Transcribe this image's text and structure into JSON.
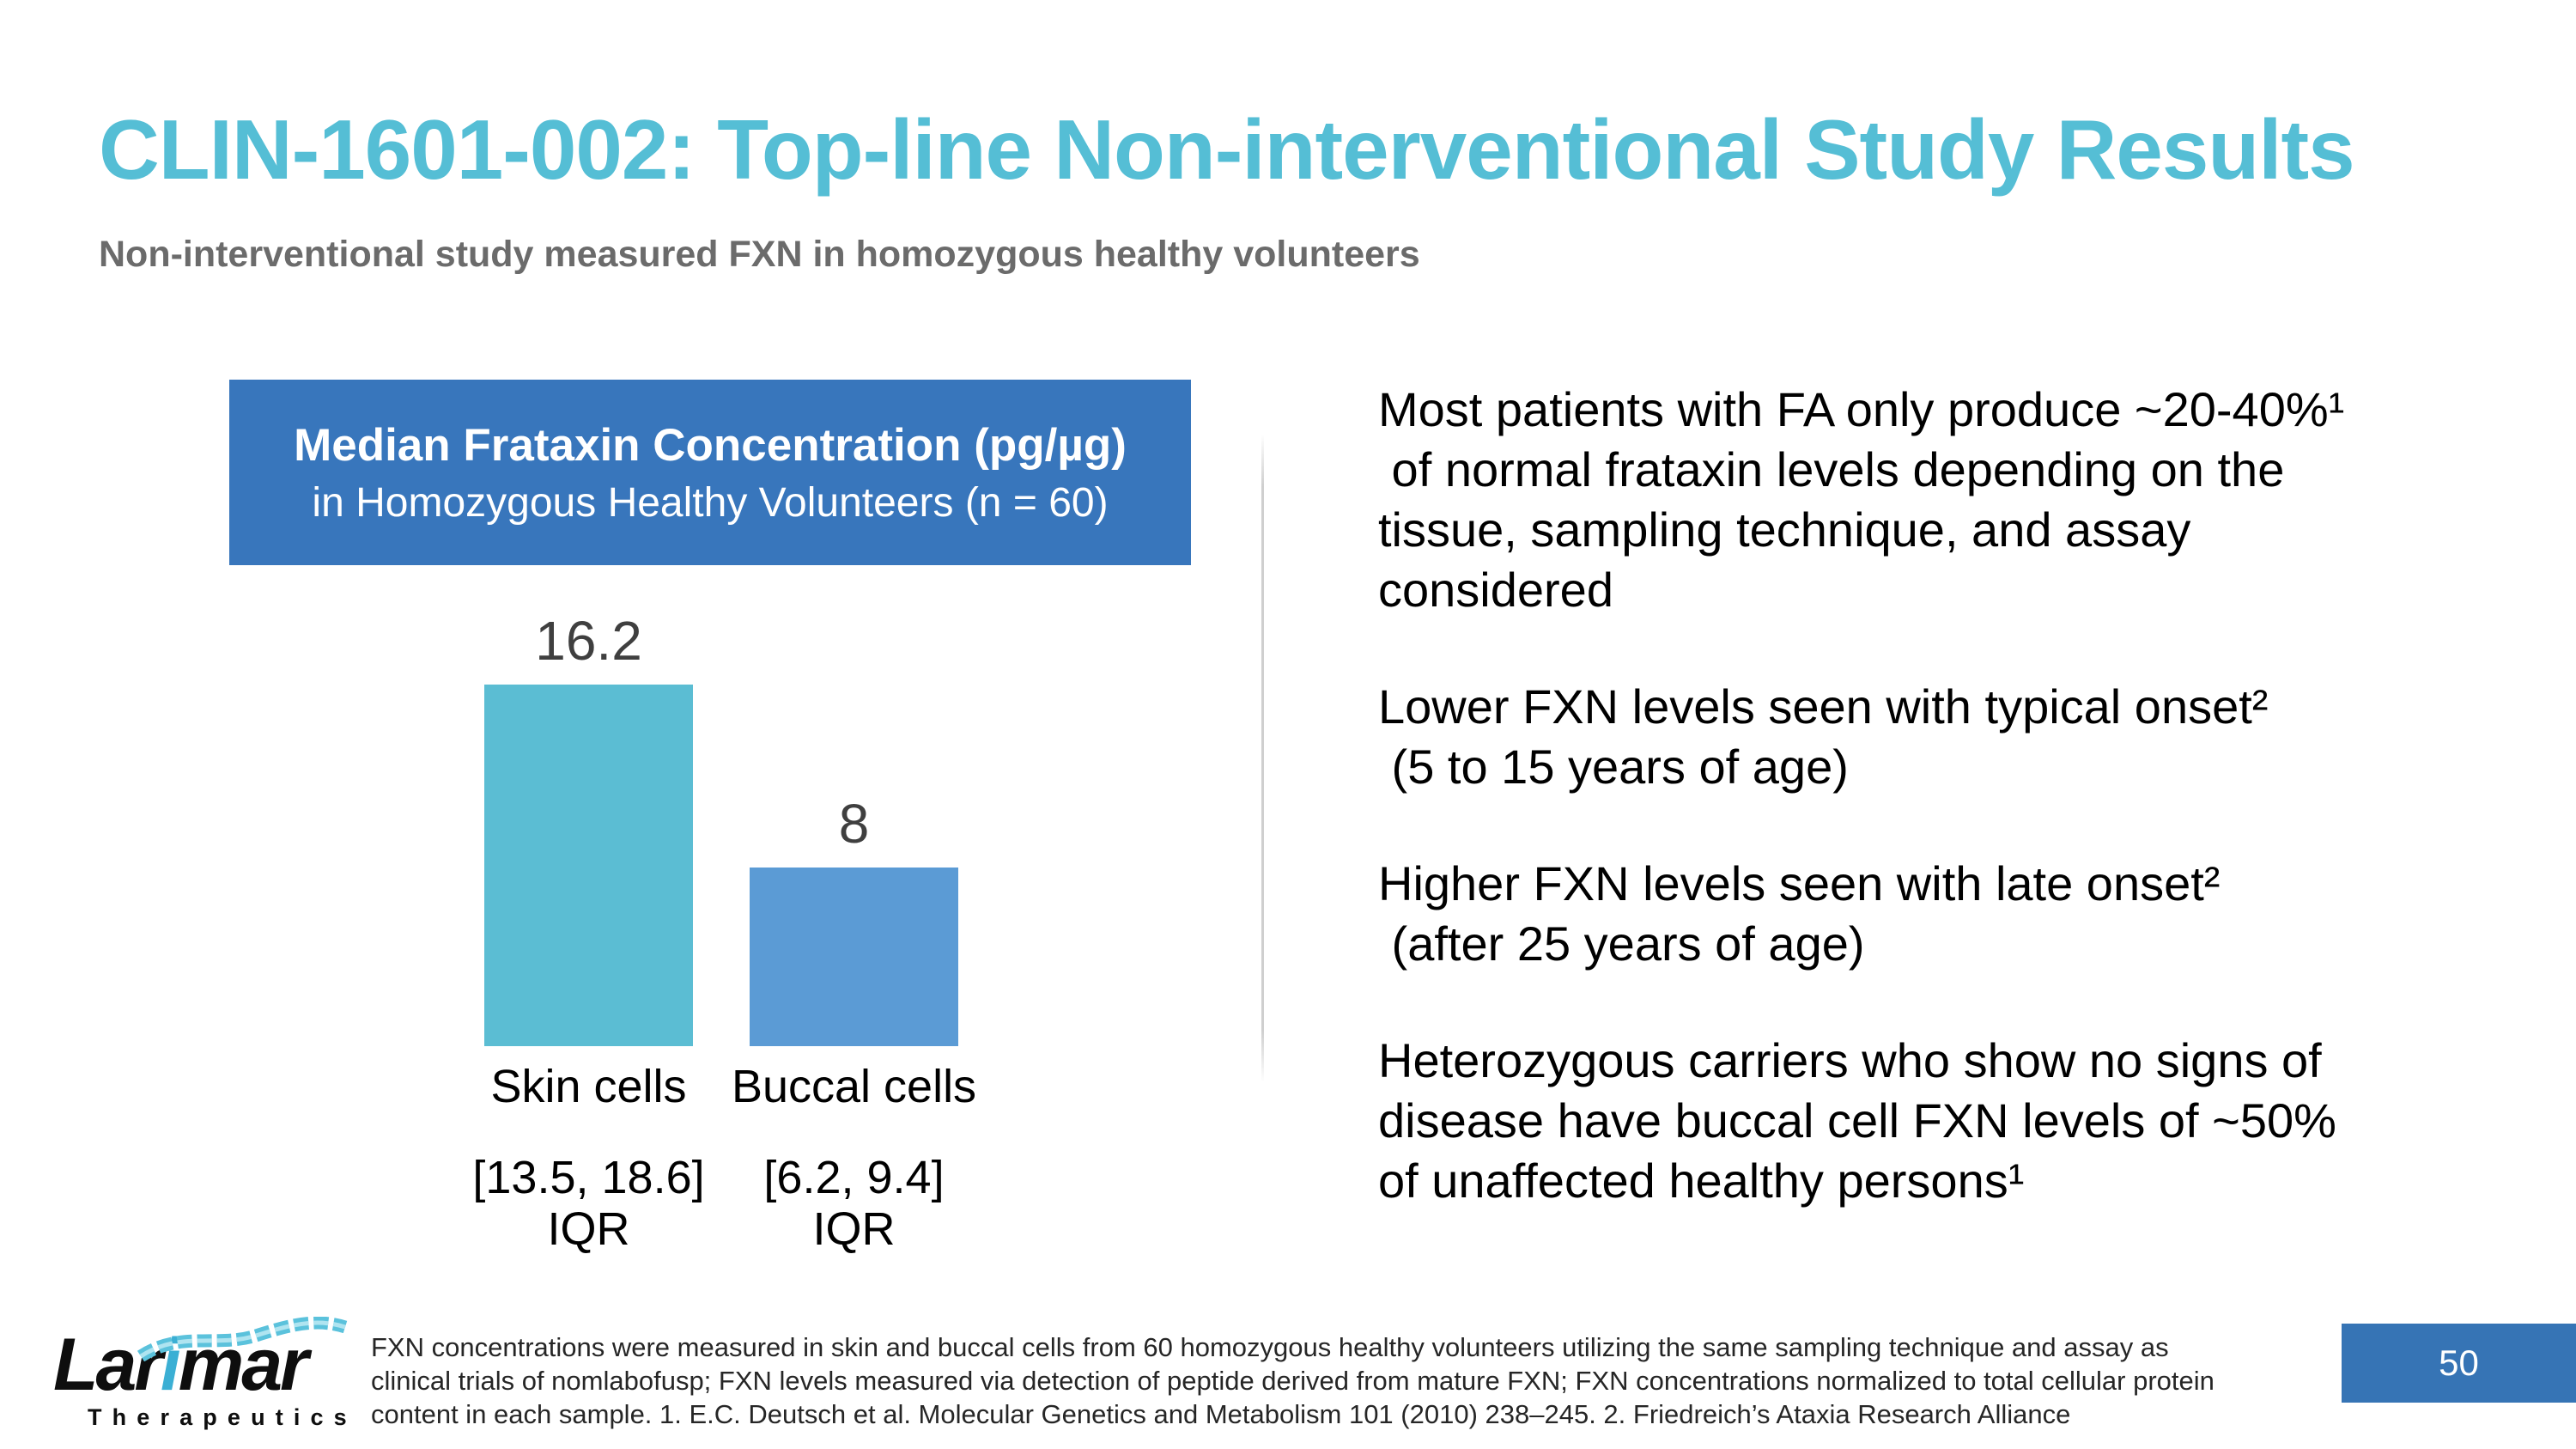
{
  "slide": {
    "title": "CLIN-1601-002: Top-line Non-interventional Study Results",
    "subtitle": "Non-interventional study measured FXN in homozygous healthy volunteers",
    "page_number": "50"
  },
  "chart_data": {
    "type": "bar",
    "title": "Median Frataxin Concentration (pg/µg)",
    "subtitle": "in Homozygous Healthy Volunteers (n = 60)",
    "categories": [
      "Skin cells",
      "Buccal cells"
    ],
    "values": [
      16.2,
      8
    ],
    "value_labels": [
      "16.2",
      "8"
    ],
    "iqr_ranges": [
      "[13.5, 18.6]",
      "[6.2, 9.4]"
    ],
    "iqr_label": "IQR",
    "bar_colors": [
      "#5BBDD3",
      "#5B9BD5"
    ],
    "value_label_color": "#3F3F3F",
    "ylim": [
      0,
      17
    ],
    "grid": false,
    "legend": false,
    "axes_shown": false
  },
  "bullets": [
    {
      "lines": [
        "Most patients with FA only produce ~20-40%¹",
        " of normal frataxin levels depending on the",
        "tissue, sampling technique, and assay",
        "considered"
      ]
    },
    {
      "lines": [
        "Lower FXN levels seen with typical onset²",
        " (5 to 15 years of age)"
      ]
    },
    {
      "lines": [
        "Higher FXN levels seen with late onset²",
        " (after 25 years of age)"
      ]
    },
    {
      "lines": [
        "Heterozygous carriers who show no signs of",
        "disease have buccal cell FXN levels of ~50%",
        "of unaffected healthy persons¹"
      ]
    }
  ],
  "footnote": {
    "lines": [
      "FXN concentrations were measured in skin and buccal cells from 60 homozygous healthy volunteers utilizing the same sampling technique and assay as",
      "clinical trials of nomlabofusp; FXN levels measured via detection of peptide derived from mature FXN; FXN concentrations normalized to total cellular protein",
      "content in each sample. 1. E.C. Deutsch et al. Molecular Genetics and Metabolism 101 (2010) 238–245. 2. Friedreich’s Ataxia Research Alliance"
    ]
  },
  "logo": {
    "word_prefix": "Lar",
    "word_i": "i",
    "word_suffix": "mar",
    "tagline": "Therapeutics"
  },
  "colors": {
    "title": "#55BED5",
    "subtitle": "#6B6B6B",
    "header": "#3876BC",
    "badge": "#3674B5",
    "divider": "#CFCFCF",
    "footnote": "#262626",
    "logo-i": "#3BAFD4",
    "helix": "#5BC2DC"
  }
}
